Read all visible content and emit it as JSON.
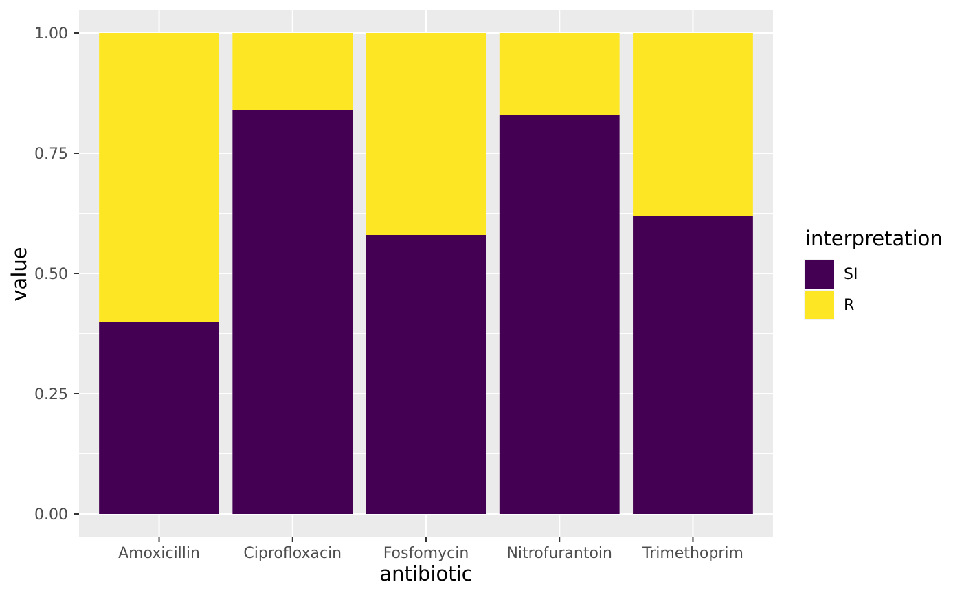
{
  "chart_data": {
    "type": "bar",
    "stacked": true,
    "title": "",
    "xlabel": "antibiotic",
    "ylabel": "value",
    "categories": [
      "Amoxicillin",
      "Ciprofloxacin",
      "Fosfomycin",
      "Nitrofurantoin",
      "Trimethoprim"
    ],
    "series": [
      {
        "name": "SI",
        "color": "#440154",
        "values": [
          0.4,
          0.84,
          0.58,
          0.83,
          0.62
        ]
      },
      {
        "name": "R",
        "color": "#FDE725",
        "values": [
          0.6,
          0.16,
          0.42,
          0.17,
          0.38
        ]
      }
    ],
    "ylim": [
      0,
      1
    ],
    "y_major_ticks": [
      "0.00",
      "0.25",
      "0.50",
      "0.75",
      "1.00"
    ],
    "y_major_values": [
      0,
      0.25,
      0.5,
      0.75,
      1.0
    ],
    "y_minor_values": [
      0.125,
      0.375,
      0.625,
      0.875
    ],
    "grid": "on",
    "bar_width_fraction": 0.9,
    "legend": {
      "title": "interpretation",
      "position": "right",
      "entries": [
        "SI",
        "R"
      ]
    }
  },
  "style": {
    "background": "#FFFFFF",
    "panel_bg": "#EBEBEB",
    "grid_color": "#FFFFFF",
    "axis_text_color": "#4D4D4D",
    "axis_title_color": "#000000",
    "tick_mark_color": "#333333",
    "legend_key_bg": "#F2F2F2"
  }
}
